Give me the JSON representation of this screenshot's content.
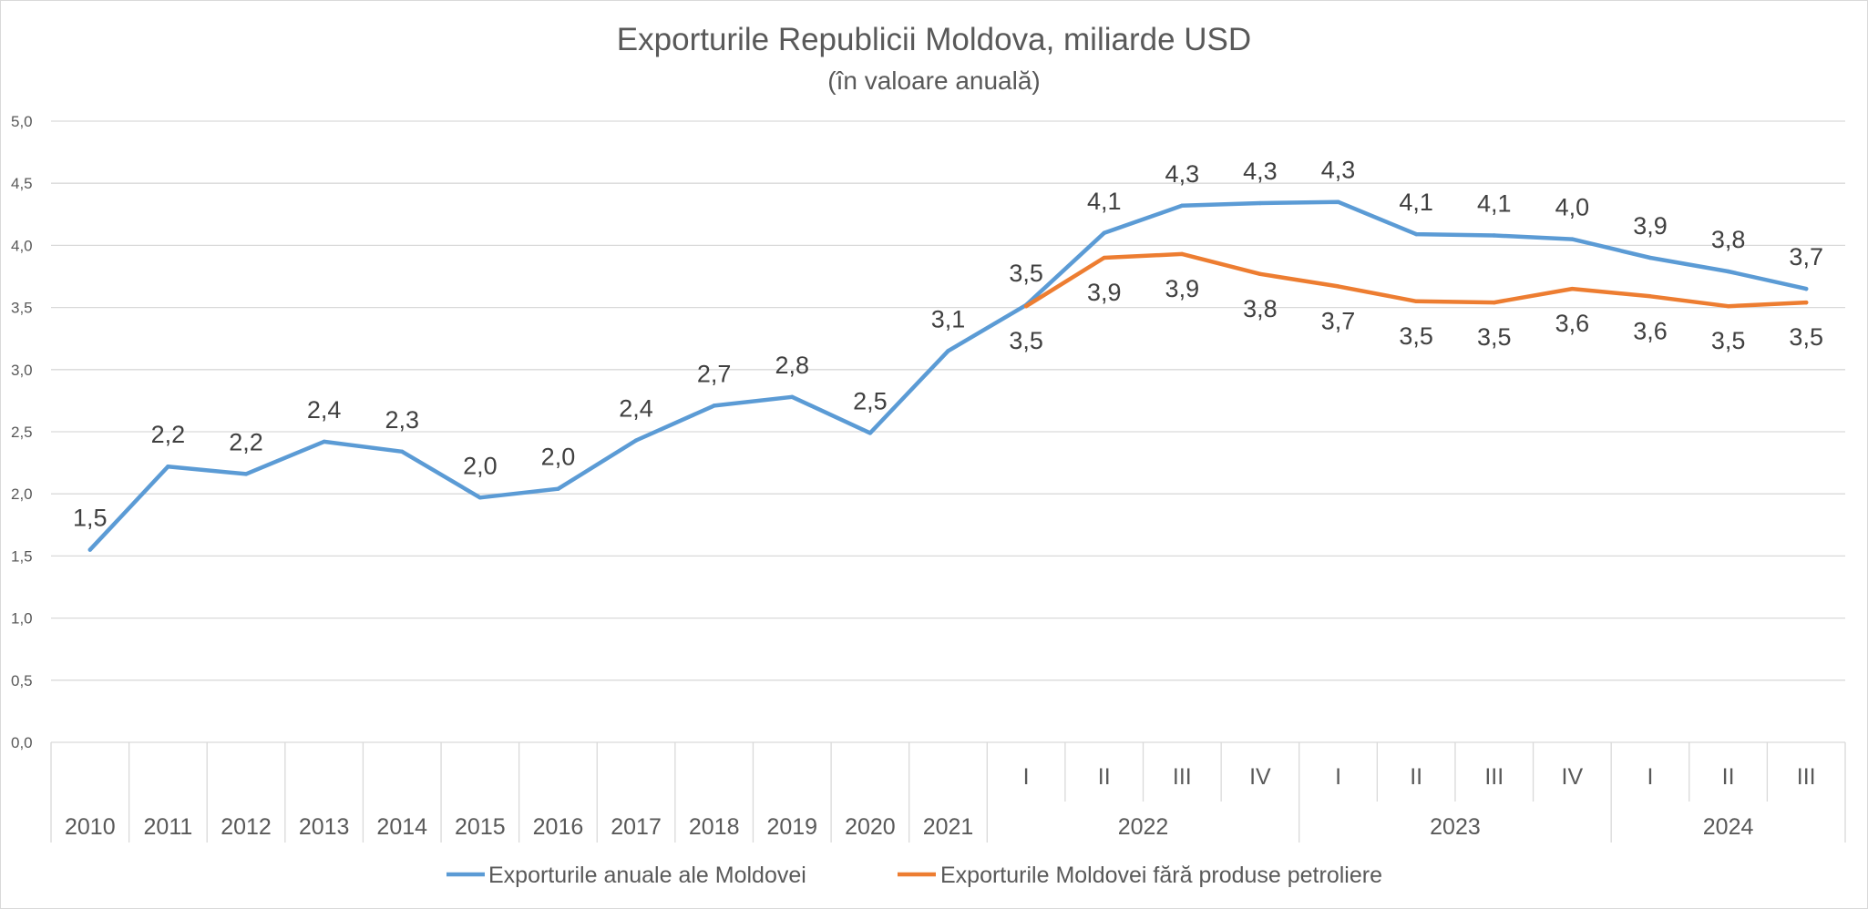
{
  "chart_data": {
    "type": "line",
    "title": "Exporturile Republicii Moldova, miliarde USD",
    "subtitle": "(în valoare anuală)",
    "xlabel": "",
    "ylabel": "",
    "ylim": [
      0,
      5
    ],
    "yticks": [
      "0,0",
      "0,5",
      "1,0",
      "1,5",
      "2,0",
      "2,5",
      "3,0",
      "3,5",
      "4,0",
      "4,5",
      "5,0"
    ],
    "grid": true,
    "legend_position": "bottom",
    "categories": [
      "2010",
      "2011",
      "2012",
      "2013",
      "2014",
      "2015",
      "2016",
      "2017",
      "2018",
      "2019",
      "2020",
      "2021",
      "I",
      "II",
      "III",
      "IV",
      "I",
      "II",
      "III",
      "IV",
      "I",
      "II",
      "III"
    ],
    "year_groups": [
      {
        "label": "2022",
        "start": 12,
        "end": 15
      },
      {
        "label": "2023",
        "start": 16,
        "end": 19
      },
      {
        "label": "2024",
        "start": 20,
        "end": 22
      }
    ],
    "series": [
      {
        "name": "Exporturile anuale ale Moldovei",
        "color": "#5b9bd5",
        "values": [
          1.55,
          2.22,
          2.16,
          2.42,
          2.34,
          1.97,
          2.04,
          2.43,
          2.71,
          2.78,
          2.49,
          3.15,
          3.52,
          4.1,
          4.32,
          4.34,
          4.35,
          4.09,
          4.08,
          4.05,
          3.9,
          3.79,
          3.65
        ],
        "labels": [
          "1,5",
          "2,2",
          "2,2",
          "2,4",
          "2,3",
          "2,0",
          "2,0",
          "2,4",
          "2,7",
          "2,8",
          "2,5",
          "3,1",
          "3,5",
          "4,1",
          "4,3",
          "4,3",
          "4,3",
          "4,1",
          "4,1",
          "4,0",
          "3,9",
          "3,8",
          "3,7"
        ]
      },
      {
        "name": "Exporturile Moldovei fără produse petroliere",
        "color": "#ed7d31",
        "values": [
          null,
          null,
          null,
          null,
          null,
          null,
          null,
          null,
          null,
          null,
          null,
          null,
          3.51,
          3.9,
          3.93,
          3.77,
          3.67,
          3.55,
          3.54,
          3.65,
          3.59,
          3.51,
          3.54
        ],
        "labels": [
          null,
          null,
          null,
          null,
          null,
          null,
          null,
          null,
          null,
          null,
          null,
          null,
          "3,5",
          "3,9",
          "3,9",
          "3,8",
          "3,7",
          "3,5",
          "3,5",
          "3,6",
          "3,6",
          "3,5",
          "3,5"
        ]
      }
    ]
  }
}
